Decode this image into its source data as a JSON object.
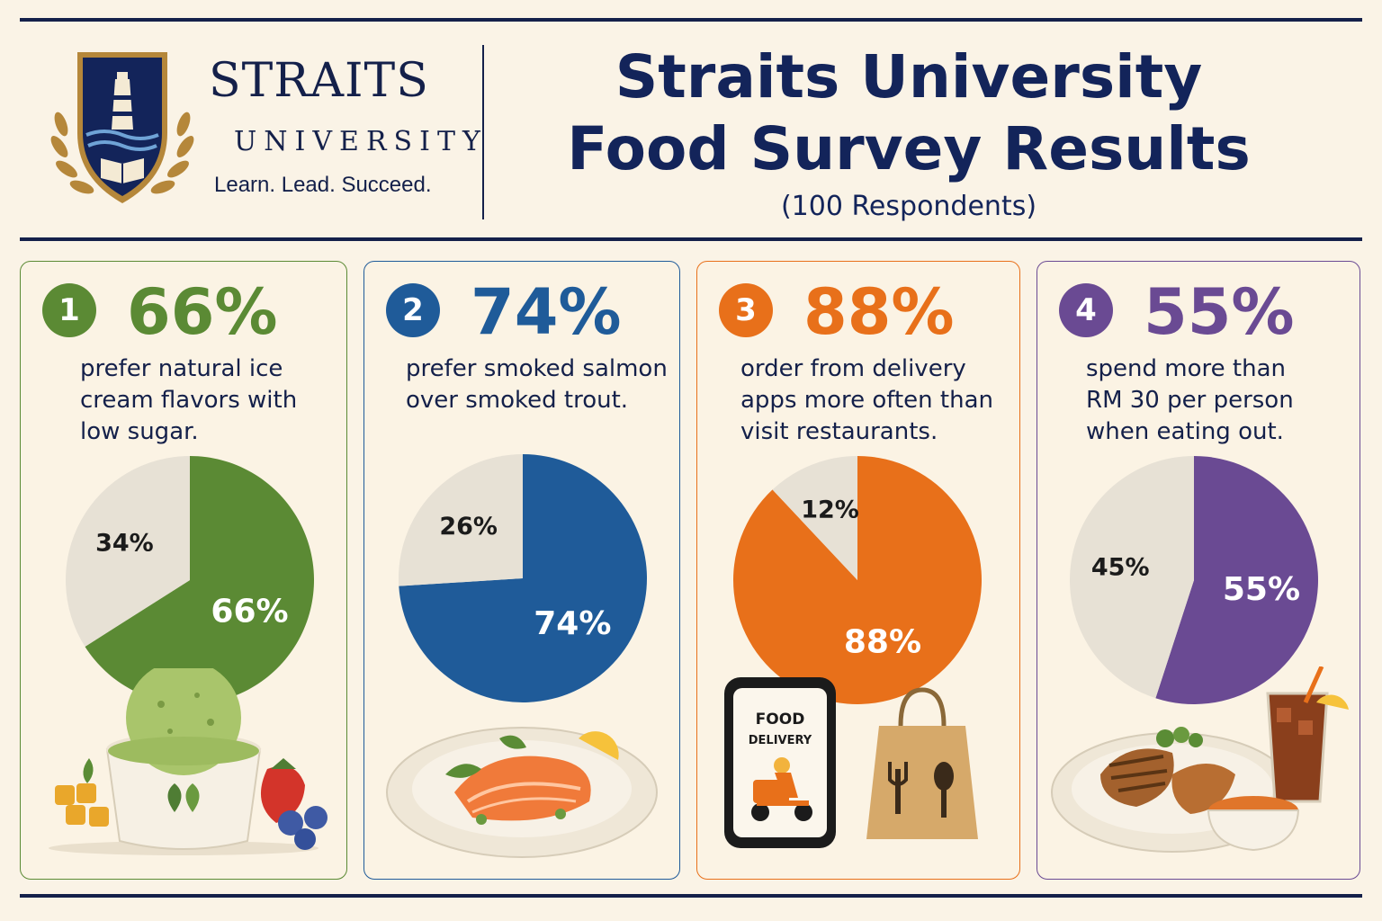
{
  "header": {
    "brand_name": "STRAITS",
    "brand_sub": "UNIVERSITY",
    "tagline": "Learn. Lead. Succeed.",
    "title_line1": "Straits University",
    "title_line2": "Food Survey Results",
    "subtitle": "(100 Respondents)"
  },
  "icons": [
    "university-crest-icon",
    "lighthouse-icon",
    "open-book-icon",
    "ice-cream-icon",
    "salmon-plate-icon",
    "phone-icon",
    "scooter-icon",
    "paper-bag-icon",
    "grilled-meal-icon",
    "iced-drink-icon"
  ],
  "phone_text": {
    "line1": "FOOD",
    "line2": "DELIVERY"
  },
  "colors": {
    "navy": "#14204a",
    "green": "#5b8a34",
    "blue": "#1f5b99",
    "orange": "#e8701a",
    "purple": "#6a4a93",
    "grey_slice": "#e7e1d5"
  },
  "cards": [
    {
      "number": "1",
      "big": "66%",
      "desc_lines": [
        "prefer natural ice",
        "cream flavors with",
        "low sugar."
      ]
    },
    {
      "number": "2",
      "big": "74%",
      "desc_lines": [
        "prefer smoked salmon",
        "over smoked trout."
      ]
    },
    {
      "number": "3",
      "big": "88%",
      "desc_lines": [
        "order from delivery",
        "apps more often than",
        "visit restaurants."
      ]
    },
    {
      "number": "4",
      "big": "55%",
      "desc_lines": [
        "spend more than",
        "RM 30 per person",
        "when eating out."
      ]
    }
  ],
  "chart_data": [
    {
      "type": "pie",
      "slices": [
        {
          "value": 66,
          "label": "66%",
          "color": "#5b8a34"
        },
        {
          "value": 34,
          "label": "34%",
          "color": "#e7e1d5"
        }
      ]
    },
    {
      "type": "pie",
      "slices": [
        {
          "value": 74,
          "label": "74%",
          "color": "#1f5b99"
        },
        {
          "value": 26,
          "label": "26%",
          "color": "#e7e1d5"
        }
      ]
    },
    {
      "type": "pie",
      "slices": [
        {
          "value": 88,
          "label": "88%",
          "color": "#e8701a"
        },
        {
          "value": 12,
          "label": "12%",
          "color": "#e7e1d5"
        }
      ]
    },
    {
      "type": "pie",
      "slices": [
        {
          "value": 55,
          "label": "55%",
          "color": "#6a4a93"
        },
        {
          "value": 45,
          "label": "45%",
          "color": "#e7e1d5"
        }
      ]
    }
  ]
}
